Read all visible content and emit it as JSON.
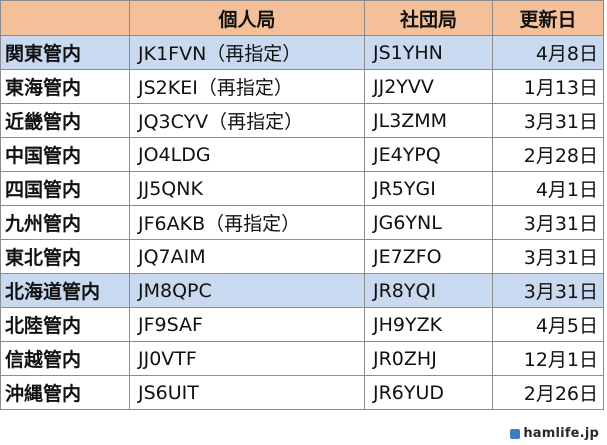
{
  "table": {
    "headers": [
      "",
      "個人局",
      "社団局",
      "更新日"
    ],
    "rows": [
      {
        "region": "関東管内",
        "personal": "JK1FVN（再指定）",
        "club": "JS1YHN",
        "date": "4月8日",
        "highlight": true
      },
      {
        "region": "東海管内",
        "personal": "JS2KEI（再指定）",
        "club": "JJ2YVV",
        "date": "1月13日",
        "highlight": false
      },
      {
        "region": "近畿管内",
        "personal": "JQ3CYV（再指定）",
        "club": "JL3ZMM",
        "date": "3月31日",
        "highlight": false
      },
      {
        "region": "中国管内",
        "personal": "JO4LDG",
        "club": "JE4YPQ",
        "date": "2月28日",
        "highlight": false
      },
      {
        "region": "四国管内",
        "personal": "JJ5QNK",
        "club": "JR5YGI",
        "date": "4月1日",
        "highlight": false
      },
      {
        "region": "九州管内",
        "personal": "JF6AKB（再指定）",
        "club": "JG6YNL",
        "date": "3月31日",
        "highlight": false
      },
      {
        "region": "東北管内",
        "personal": "JQ7AIM",
        "club": "JE7ZFO",
        "date": "3月31日",
        "highlight": false
      },
      {
        "region": "北海道管内",
        "personal": "JM8QPC",
        "club": "JR8YQI",
        "date": "3月31日",
        "highlight": true
      },
      {
        "region": "北陸管内",
        "personal": "JF9SAF",
        "club": "JH9YZK",
        "date": "4月5日",
        "highlight": false
      },
      {
        "region": "信越管内",
        "personal": "JJ0VTF",
        "club": "JR0ZHJ",
        "date": "12月1日",
        "highlight": false
      },
      {
        "region": "沖縄管内",
        "personal": "JS6UIT",
        "club": "JR6YUD",
        "date": "2月26日",
        "highlight": false
      }
    ]
  },
  "watermark": {
    "text": "hamlife.jp",
    "icon": "hamlife-logo-icon",
    "color": "#3a7fc4"
  },
  "colors": {
    "header_bg": "#f3c09a",
    "highlight_bg": "#c9d9ef",
    "border": "#8c8c8c"
  }
}
